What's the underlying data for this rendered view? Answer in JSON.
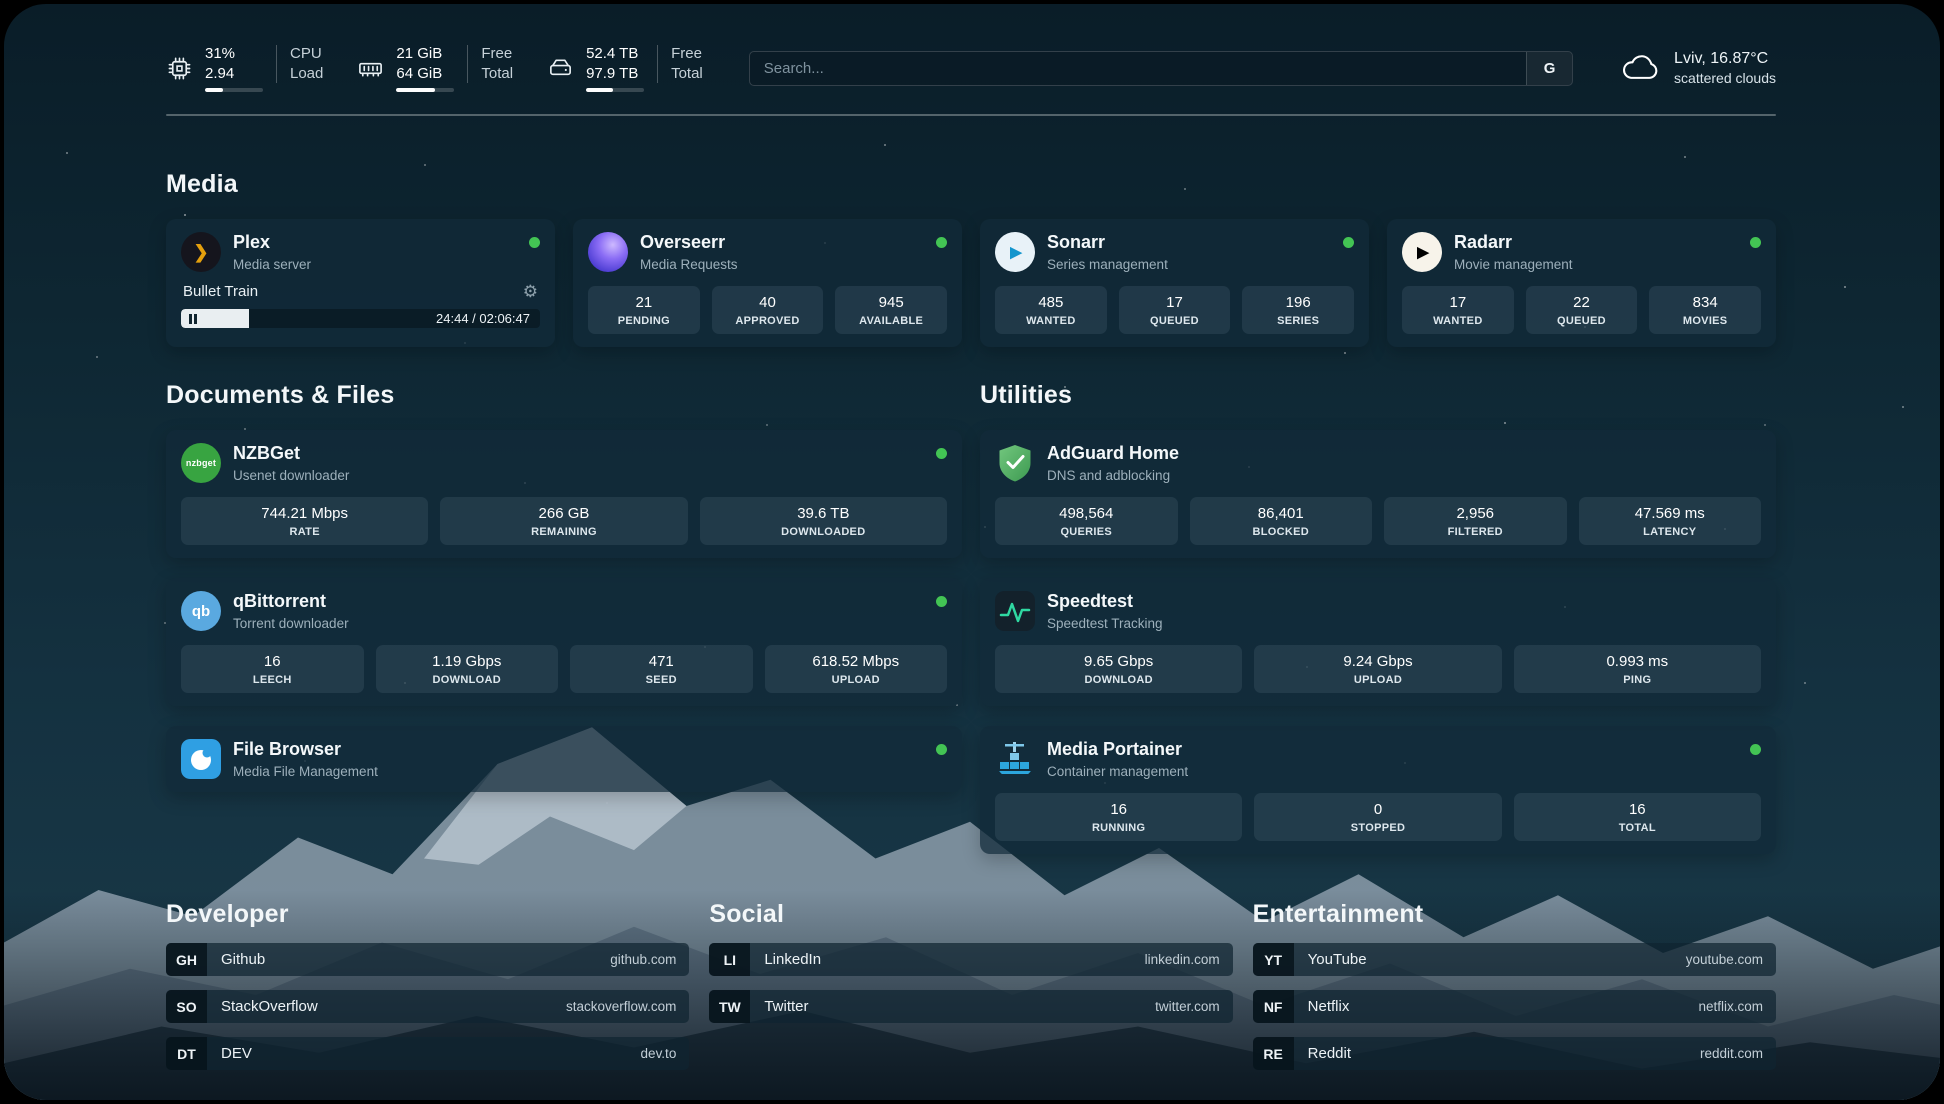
{
  "colors": {
    "status_online": "#43c454",
    "plex_accent": "#e5a00d",
    "progress_fill": "#e9eef1"
  },
  "header": {
    "cpu": {
      "icon": "cpu-chip-icon",
      "value1": "31%",
      "value2": "2.94",
      "label1": "CPU",
      "label2": "Load",
      "bar_percent": 31
    },
    "memory": {
      "icon": "ram-icon",
      "value1": "21 GiB",
      "value2": "64 GiB",
      "label1": "Free",
      "label2": "Total",
      "bar_percent": 67
    },
    "disk": {
      "icon": "hard-drive-icon",
      "value1": "52.4 TB",
      "value2": "97.9 TB",
      "label1": "Free",
      "label2": "Total",
      "bar_percent": 47
    },
    "search": {
      "placeholder": "Search...",
      "engine_button": "G"
    },
    "weather": {
      "icon": "cloud-icon",
      "location": "Lviv, 16.87°C",
      "condition": "scattered clouds"
    }
  },
  "sections": {
    "media": {
      "title": "Media",
      "plex": {
        "icon": "plex-icon",
        "name": "Plex",
        "subtitle": "Media server",
        "online": true,
        "now_playing": "Bullet Train",
        "time": "24:44 / 02:06:47",
        "progress_percent": 19
      },
      "overseerr": {
        "icon": "overseerr-icon",
        "name": "Overseerr",
        "subtitle": "Media Requests",
        "online": true,
        "stats": [
          {
            "value": "21",
            "label": "PENDING"
          },
          {
            "value": "40",
            "label": "APPROVED"
          },
          {
            "value": "945",
            "label": "AVAILABLE"
          }
        ]
      },
      "sonarr": {
        "icon": "sonarr-icon",
        "name": "Sonarr",
        "subtitle": "Series management",
        "online": true,
        "stats": [
          {
            "value": "485",
            "label": "WANTED"
          },
          {
            "value": "17",
            "label": "QUEUED"
          },
          {
            "value": "196",
            "label": "SERIES"
          }
        ]
      },
      "radarr": {
        "icon": "radarr-icon",
        "name": "Radarr",
        "subtitle": "Movie management",
        "online": true,
        "stats": [
          {
            "value": "17",
            "label": "WANTED"
          },
          {
            "value": "22",
            "label": "QUEUED"
          },
          {
            "value": "834",
            "label": "MOVIES"
          }
        ]
      }
    },
    "documents": {
      "title": "Documents & Files",
      "nzbget": {
        "icon": "nzbget-icon",
        "icon_text": "nzbget",
        "name": "NZBGet",
        "subtitle": "Usenet downloader",
        "online": true,
        "stats": [
          {
            "value": "744.21 Mbps",
            "label": "RATE"
          },
          {
            "value": "266 GB",
            "label": "REMAINING"
          },
          {
            "value": "39.6 TB",
            "label": "DOWNLOADED"
          }
        ]
      },
      "qbittorrent": {
        "icon": "qbittorrent-icon",
        "icon_text": "qb",
        "name": "qBittorrent",
        "subtitle": "Torrent downloader",
        "online": true,
        "stats": [
          {
            "value": "16",
            "label": "LEECH"
          },
          {
            "value": "1.19 Gbps",
            "label": "DOWNLOAD"
          },
          {
            "value": "471",
            "label": "SEED"
          },
          {
            "value": "618.52 Mbps",
            "label": "UPLOAD"
          }
        ]
      },
      "filebrowser": {
        "icon": "filebrowser-icon",
        "name": "File Browser",
        "subtitle": "Media File Management",
        "online": true
      }
    },
    "utilities": {
      "title": "Utilities",
      "adguard": {
        "icon": "adguard-shield-icon",
        "name": "AdGuard Home",
        "subtitle": "DNS and adblocking",
        "stats": [
          {
            "value": "498,564",
            "label": "QUERIES"
          },
          {
            "value": "86,401",
            "label": "BLOCKED"
          },
          {
            "value": "2,956",
            "label": "FILTERED"
          },
          {
            "value": "47.569 ms",
            "label": "LATENCY"
          }
        ]
      },
      "speedtest": {
        "icon": "speedtest-icon",
        "name": "Speedtest",
        "subtitle": "Speedtest Tracking",
        "stats": [
          {
            "value": "9.65 Gbps",
            "label": "DOWNLOAD"
          },
          {
            "value": "9.24 Gbps",
            "label": "UPLOAD"
          },
          {
            "value": "0.993 ms",
            "label": "PING"
          }
        ]
      },
      "portainer": {
        "icon": "portainer-icon",
        "name": "Media Portainer",
        "subtitle": "Container management",
        "online": true,
        "stats": [
          {
            "value": "16",
            "label": "RUNNING"
          },
          {
            "value": "0",
            "label": "STOPPED"
          },
          {
            "value": "16",
            "label": "TOTAL"
          }
        ]
      }
    },
    "developer": {
      "title": "Developer",
      "links": [
        {
          "abbr": "GH",
          "name": "Github",
          "url": "github.com"
        },
        {
          "abbr": "SO",
          "name": "StackOverflow",
          "url": "stackoverflow.com"
        },
        {
          "abbr": "DT",
          "name": "DEV",
          "url": "dev.to"
        }
      ]
    },
    "social": {
      "title": "Social",
      "links": [
        {
          "abbr": "LI",
          "name": "LinkedIn",
          "url": "linkedin.com"
        },
        {
          "abbr": "TW",
          "name": "Twitter",
          "url": "twitter.com"
        }
      ]
    },
    "entertainment": {
      "title": "Entertainment",
      "links": [
        {
          "abbr": "YT",
          "name": "YouTube",
          "url": "youtube.com"
        },
        {
          "abbr": "NF",
          "name": "Netflix",
          "url": "netflix.com"
        },
        {
          "abbr": "RE",
          "name": "Reddit",
          "url": "reddit.com"
        }
      ]
    }
  }
}
